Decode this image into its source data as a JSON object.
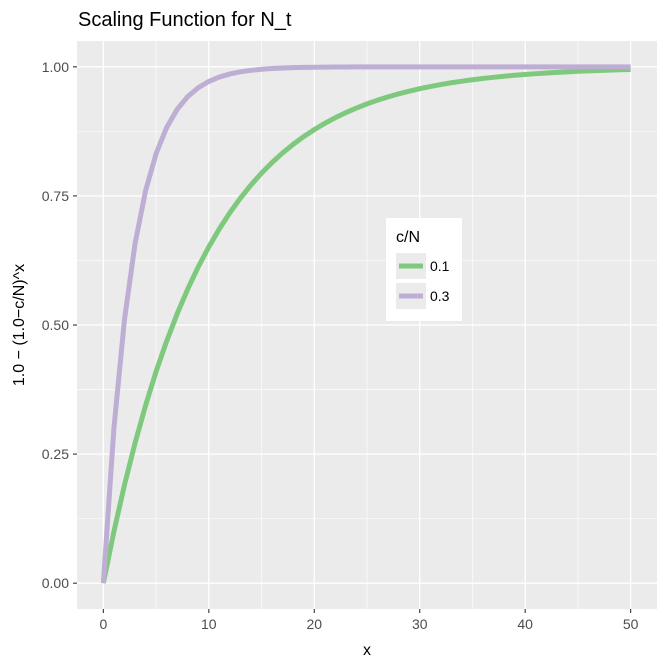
{
  "chart_data": {
    "type": "line",
    "title": "Scaling Function for N_t",
    "xlabel": "x",
    "ylabel": "1.0 − (1.0−c/N)^x",
    "xlim": [
      -2.5,
      52.5
    ],
    "ylim": [
      -0.05,
      1.05
    ],
    "x_ticks": [
      0,
      10,
      20,
      30,
      40,
      50
    ],
    "x_tick_labels": [
      "0",
      "10",
      "20",
      "30",
      "40",
      "50"
    ],
    "y_ticks": [
      0,
      0.25,
      0.5,
      0.75,
      1.0
    ],
    "y_tick_labels": [
      "0.00",
      "0.25",
      "0.50",
      "0.75",
      "1.00"
    ],
    "grid": true,
    "legend": {
      "title": "c/N",
      "placement": "inside-right"
    },
    "x": [
      0,
      1,
      2,
      3,
      4,
      5,
      6,
      7,
      8,
      9,
      10,
      11,
      12,
      13,
      14,
      15,
      16,
      17,
      18,
      19,
      20,
      21,
      22,
      23,
      24,
      25,
      26,
      27,
      28,
      29,
      30,
      31,
      32,
      33,
      34,
      35,
      36,
      37,
      38,
      39,
      40,
      41,
      42,
      43,
      44,
      45,
      46,
      47,
      48,
      49,
      50
    ],
    "series": [
      {
        "name": "0.1",
        "color": "#7fc97f",
        "values": [
          0,
          0.1,
          0.19,
          0.271,
          0.3439,
          0.41,
          0.4686,
          0.5217,
          0.5695,
          0.6126,
          0.6513,
          0.6862,
          0.7176,
          0.7458,
          0.7712,
          0.7941,
          0.8147,
          0.8332,
          0.8499,
          0.8649,
          0.8784,
          0.8906,
          0.9015,
          0.9114,
          0.9202,
          0.9282,
          0.9354,
          0.9418,
          0.9477,
          0.9529,
          0.9576,
          0.9618,
          0.9657,
          0.9691,
          0.9722,
          0.975,
          0.9775,
          0.9797,
          0.9818,
          0.9836,
          0.9852,
          0.9867,
          0.988,
          0.9892,
          0.9903,
          0.9913,
          0.9921,
          0.9929,
          0.9936,
          0.9943,
          0.9948
        ]
      },
      {
        "name": "0.3",
        "color": "#beaed4",
        "values": [
          0,
          0.3,
          0.51,
          0.657,
          0.7599,
          0.8319,
          0.8824,
          0.9176,
          0.9424,
          0.9596,
          0.9718,
          0.9802,
          0.9862,
          0.9903,
          0.9932,
          0.9953,
          0.9967,
          0.9977,
          0.9984,
          0.9989,
          0.9992,
          0.9994,
          0.9996,
          0.9997,
          0.9998,
          0.9999,
          0.9999,
          0.9999,
          1.0,
          1.0,
          1.0,
          1.0,
          1.0,
          1.0,
          1.0,
          1.0,
          1.0,
          1.0,
          1.0,
          1.0,
          1.0,
          1.0,
          1.0,
          1.0,
          1.0,
          1.0,
          1.0,
          1.0,
          1.0,
          1.0,
          1.0
        ]
      }
    ]
  }
}
